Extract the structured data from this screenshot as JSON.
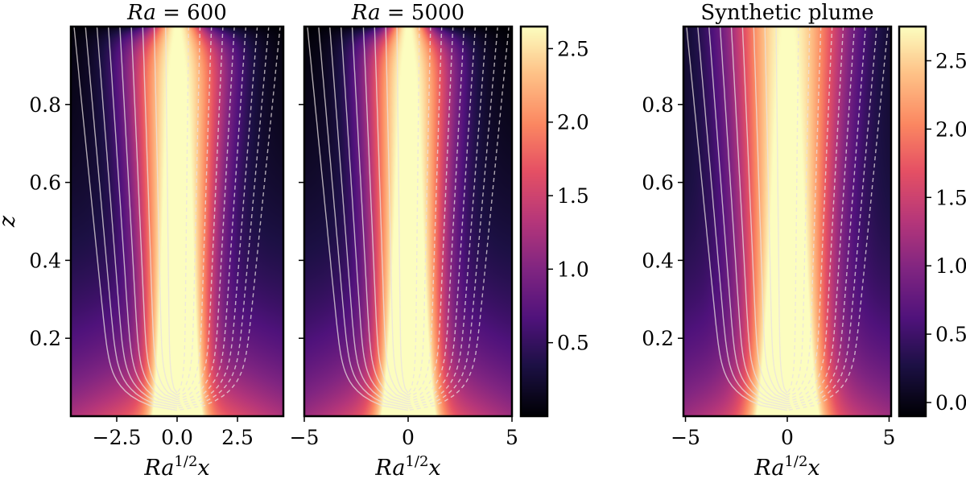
{
  "chart_data": [
    {
      "type": "heatmap",
      "title": {
        "italic": "Ra",
        "rest": " = 600"
      },
      "xlabel": {
        "base": "Ra",
        "sup": "1/2",
        "var": "x"
      },
      "ylabel": "z",
      "xlim": [
        -4.4,
        4.4
      ],
      "ylim": [
        0,
        1
      ],
      "xticks": [
        "−2.5",
        "0.0",
        "2.5"
      ],
      "xtick_values": [
        -2.5,
        0,
        2.5
      ],
      "yticks": [
        "0.2",
        "0.4",
        "0.6",
        "0.8"
      ],
      "ytick_values": [
        0.2,
        0.4,
        0.6,
        0.8
      ],
      "colormap": "magma",
      "overlay": "streamlines (solid left, dashed right)",
      "contour_color": "#e8e0e0"
    },
    {
      "type": "heatmap",
      "title": {
        "italic": "Ra",
        "rest": " = 5000"
      },
      "xlabel": {
        "base": "Ra",
        "sup": "1/2",
        "var": "x"
      },
      "xlim": [
        -5,
        5
      ],
      "ylim": [
        0,
        1
      ],
      "xticks": [
        "−5",
        "0",
        "5"
      ],
      "xtick_values": [
        -5,
        0,
        5
      ],
      "yticks": [],
      "ytick_values": [
        0.2,
        0.4,
        0.6,
        0.8
      ],
      "colormap": "magma",
      "colorbar": {
        "ticks": [
          "0.5",
          "1.0",
          "1.5",
          "2.0",
          "2.5"
        ],
        "tick_values": [
          0.5,
          1.0,
          1.5,
          2.0,
          2.5
        ],
        "range": [
          0,
          2.65
        ]
      }
    },
    {
      "type": "heatmap",
      "title": {
        "italic": "",
        "rest": "Synthetic plume"
      },
      "xlabel": {
        "base": "Ra",
        "sup": "1/2",
        "var": "x"
      },
      "xlim": [
        -5.1,
        5.1
      ],
      "ylim": [
        0,
        1
      ],
      "xticks": [
        "−5",
        "0",
        "5"
      ],
      "xtick_values": [
        -5,
        0,
        5
      ],
      "yticks": [
        "0.2",
        "0.4",
        "0.6",
        "0.8"
      ],
      "ytick_values": [
        0.2,
        0.4,
        0.6,
        0.8
      ],
      "colormap": "magma",
      "colorbar": {
        "ticks": [
          "0.0",
          "0.5",
          "1.0",
          "1.5",
          "2.0",
          "2.5"
        ],
        "tick_values": [
          0,
          0.5,
          1.0,
          1.5,
          2.0,
          2.5
        ],
        "range": [
          -0.1,
          2.75
        ]
      }
    }
  ]
}
